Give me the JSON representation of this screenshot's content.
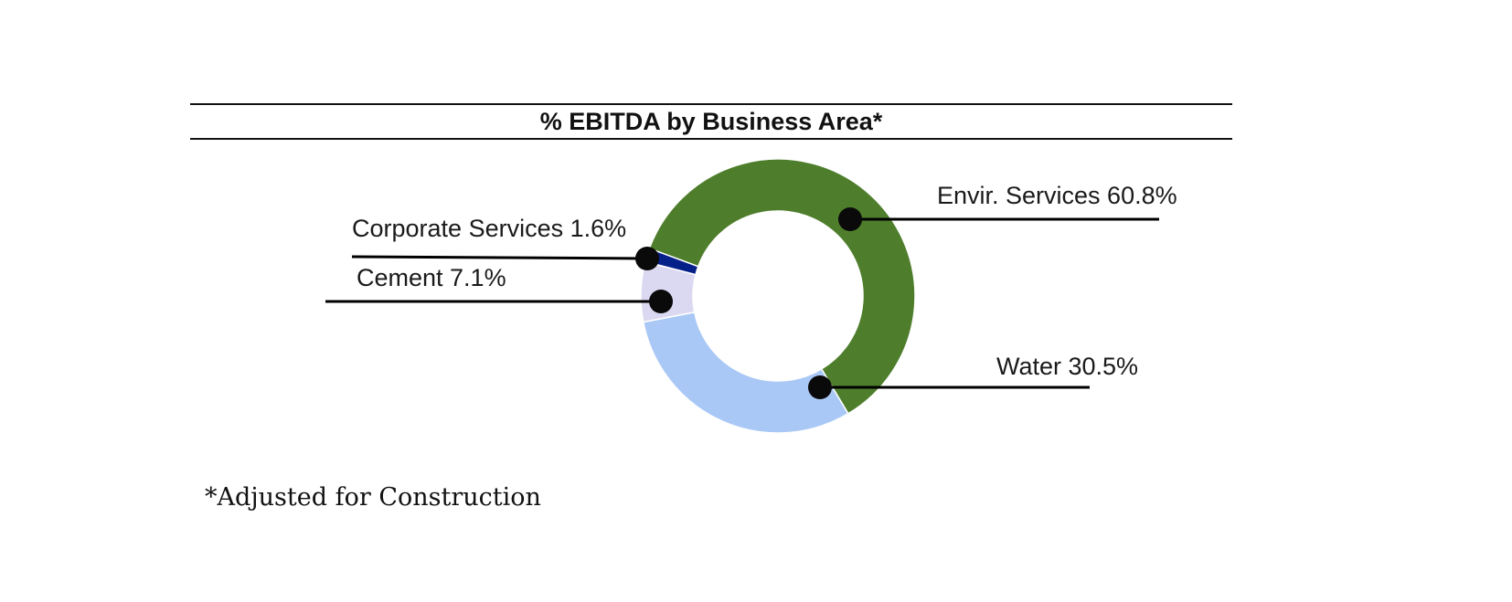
{
  "title": "% EBITDA by Business Area*",
  "footnote": "*Adjusted for Construction",
  "chart_data": {
    "type": "pie",
    "subtype": "donut",
    "title": "% EBITDA by Business Area*",
    "units": "percent",
    "start_angle_deg_clockwise_from_top": 290.3,
    "direction": "clockwise",
    "legend_position": "callout-labels",
    "footnote": "*Adjusted for Construction",
    "segments": [
      {
        "label": "Envir. Services",
        "value": 60.8,
        "color": "#4E7E2C",
        "display": "Envir. Services 60.8%"
      },
      {
        "label": "Water",
        "value": 30.5,
        "color": "#A9C8F6",
        "display": "Water 30.5%"
      },
      {
        "label": "Cement",
        "value": 7.1,
        "color": "#DBD8F1",
        "display": "Cement 7.1%"
      },
      {
        "label": "Corporate Services",
        "value": 1.6,
        "color": "#06208A",
        "display": "Corporate Services 1.6%"
      }
    ],
    "colors": {
      "leader_line": "#000000",
      "callout_dot": "#0a0a0a",
      "title_rule": "#111111"
    }
  }
}
